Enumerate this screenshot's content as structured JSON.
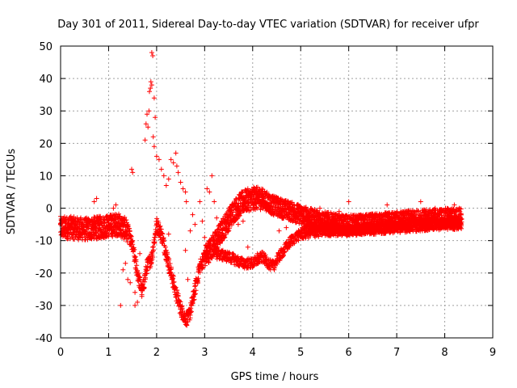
{
  "chart_data": {
    "type": "scatter",
    "title": "Day 301 of 2011, Sidereal Day-to-day VTEC variation (SDTVAR) for receiver ufpr",
    "xlabel": "GPS time / hours",
    "ylabel": "SDTVAR / TECUs",
    "xlim": [
      0,
      9
    ],
    "ylim": [
      -40,
      50
    ],
    "xticks": [
      0,
      1,
      2,
      3,
      4,
      5,
      6,
      7,
      8,
      9
    ],
    "yticks": [
      -40,
      -30,
      -20,
      -10,
      0,
      10,
      20,
      30,
      40,
      50
    ],
    "grid": true,
    "marker": "+",
    "series": [
      {
        "name": "SDTVAR",
        "color": "#ff0000",
        "trend": {
          "x": [
            0.0,
            0.2,
            0.5,
            0.8,
            1.0,
            1.2,
            1.4,
            1.5,
            1.6,
            1.7,
            1.8,
            1.9,
            2.0,
            2.1,
            2.2,
            2.3,
            2.4,
            2.5,
            2.6,
            2.65,
            2.7,
            2.8,
            2.9,
            3.0,
            3.1,
            3.2,
            3.4,
            3.6,
            3.8,
            4.0,
            4.2,
            4.4,
            4.6,
            4.8,
            5.0,
            5.2,
            5.5,
            5.8,
            6.0,
            6.3,
            6.6,
            7.0,
            7.5,
            8.0,
            8.35
          ],
          "y": [
            -6,
            -6,
            -6.5,
            -6,
            -5.5,
            -5,
            -7,
            -12,
            -20,
            -26,
            -18,
            -15,
            -5,
            -8,
            -14,
            -20,
            -26,
            -31,
            -34,
            -34,
            -32,
            -25,
            -18,
            -15,
            -13,
            -11,
            -6,
            -1,
            2,
            3,
            3,
            1,
            0,
            -1,
            -2,
            -3,
            -4,
            -5,
            -5,
            -5,
            -4.5,
            -4,
            -3.5,
            -3,
            -3
          ]
        },
        "lower_envelope": {
          "x": [
            3.2,
            3.5,
            3.8,
            4.0,
            4.2,
            4.4,
            4.6,
            4.8,
            5.0,
            5.5,
            6.0,
            7.0,
            8.0,
            8.35
          ],
          "y": [
            -14,
            -15,
            -17,
            -17,
            -15,
            -18,
            -14,
            -10,
            -8,
            -7,
            -7,
            -6,
            -5,
            -5
          ]
        },
        "outliers": [
          [
            1.9,
            48
          ],
          [
            1.92,
            47
          ],
          [
            1.88,
            39
          ],
          [
            1.9,
            38
          ],
          [
            1.85,
            36
          ],
          [
            1.87,
            37
          ],
          [
            1.84,
            30
          ],
          [
            1.8,
            29
          ],
          [
            1.78,
            26
          ],
          [
            1.82,
            25
          ],
          [
            1.76,
            21
          ],
          [
            1.95,
            34
          ],
          [
            1.97,
            28
          ],
          [
            1.93,
            22
          ],
          [
            1.95,
            19
          ],
          [
            2.0,
            16
          ],
          [
            2.05,
            15
          ],
          [
            2.1,
            12
          ],
          [
            2.15,
            10
          ],
          [
            2.2,
            7
          ],
          [
            2.25,
            9
          ],
          [
            2.3,
            15
          ],
          [
            2.35,
            14
          ],
          [
            2.4,
            17
          ],
          [
            2.42,
            13
          ],
          [
            2.45,
            11
          ],
          [
            2.5,
            8
          ],
          [
            2.55,
            6
          ],
          [
            2.6,
            5
          ],
          [
            2.62,
            2
          ],
          [
            1.5,
            11
          ],
          [
            1.48,
            12
          ],
          [
            1.65,
            -14
          ],
          [
            1.55,
            -26
          ],
          [
            1.45,
            -23
          ],
          [
            1.4,
            -22
          ],
          [
            1.35,
            -17
          ],
          [
            1.3,
            -19
          ],
          [
            1.25,
            -30
          ],
          [
            1.55,
            -30
          ],
          [
            1.6,
            -29
          ],
          [
            2.7,
            -7
          ],
          [
            2.75,
            -2
          ],
          [
            2.8,
            -5
          ],
          [
            2.9,
            2
          ],
          [
            2.95,
            -4
          ],
          [
            3.0,
            -9
          ],
          [
            3.05,
            6
          ],
          [
            3.1,
            5
          ],
          [
            3.15,
            10
          ],
          [
            3.2,
            2
          ],
          [
            3.25,
            -3
          ],
          [
            2.2,
            -13
          ],
          [
            2.25,
            -8
          ],
          [
            1.1,
            0
          ],
          [
            1.15,
            1
          ],
          [
            1.2,
            -3
          ],
          [
            0.7,
            2
          ],
          [
            0.75,
            3
          ],
          [
            0.3,
            -4
          ],
          [
            3.45,
            -14
          ],
          [
            3.55,
            -16
          ],
          [
            3.9,
            -12
          ],
          [
            4.1,
            -14
          ],
          [
            4.3,
            -17
          ],
          [
            4.45,
            -19
          ],
          [
            4.55,
            -7
          ],
          [
            4.7,
            -6
          ],
          [
            6.0,
            2
          ],
          [
            5.8,
            -1
          ],
          [
            5.4,
            0
          ],
          [
            5.6,
            -2
          ],
          [
            6.8,
            1
          ],
          [
            7.2,
            -1
          ],
          [
            7.5,
            2
          ],
          [
            7.8,
            0
          ],
          [
            8.2,
            1
          ],
          [
            8.3,
            0
          ],
          [
            1.3,
            -7
          ],
          [
            2.6,
            -13
          ],
          [
            2.65,
            -22
          ],
          [
            3.8,
            -4
          ],
          [
            3.7,
            -5
          ]
        ]
      }
    ]
  }
}
